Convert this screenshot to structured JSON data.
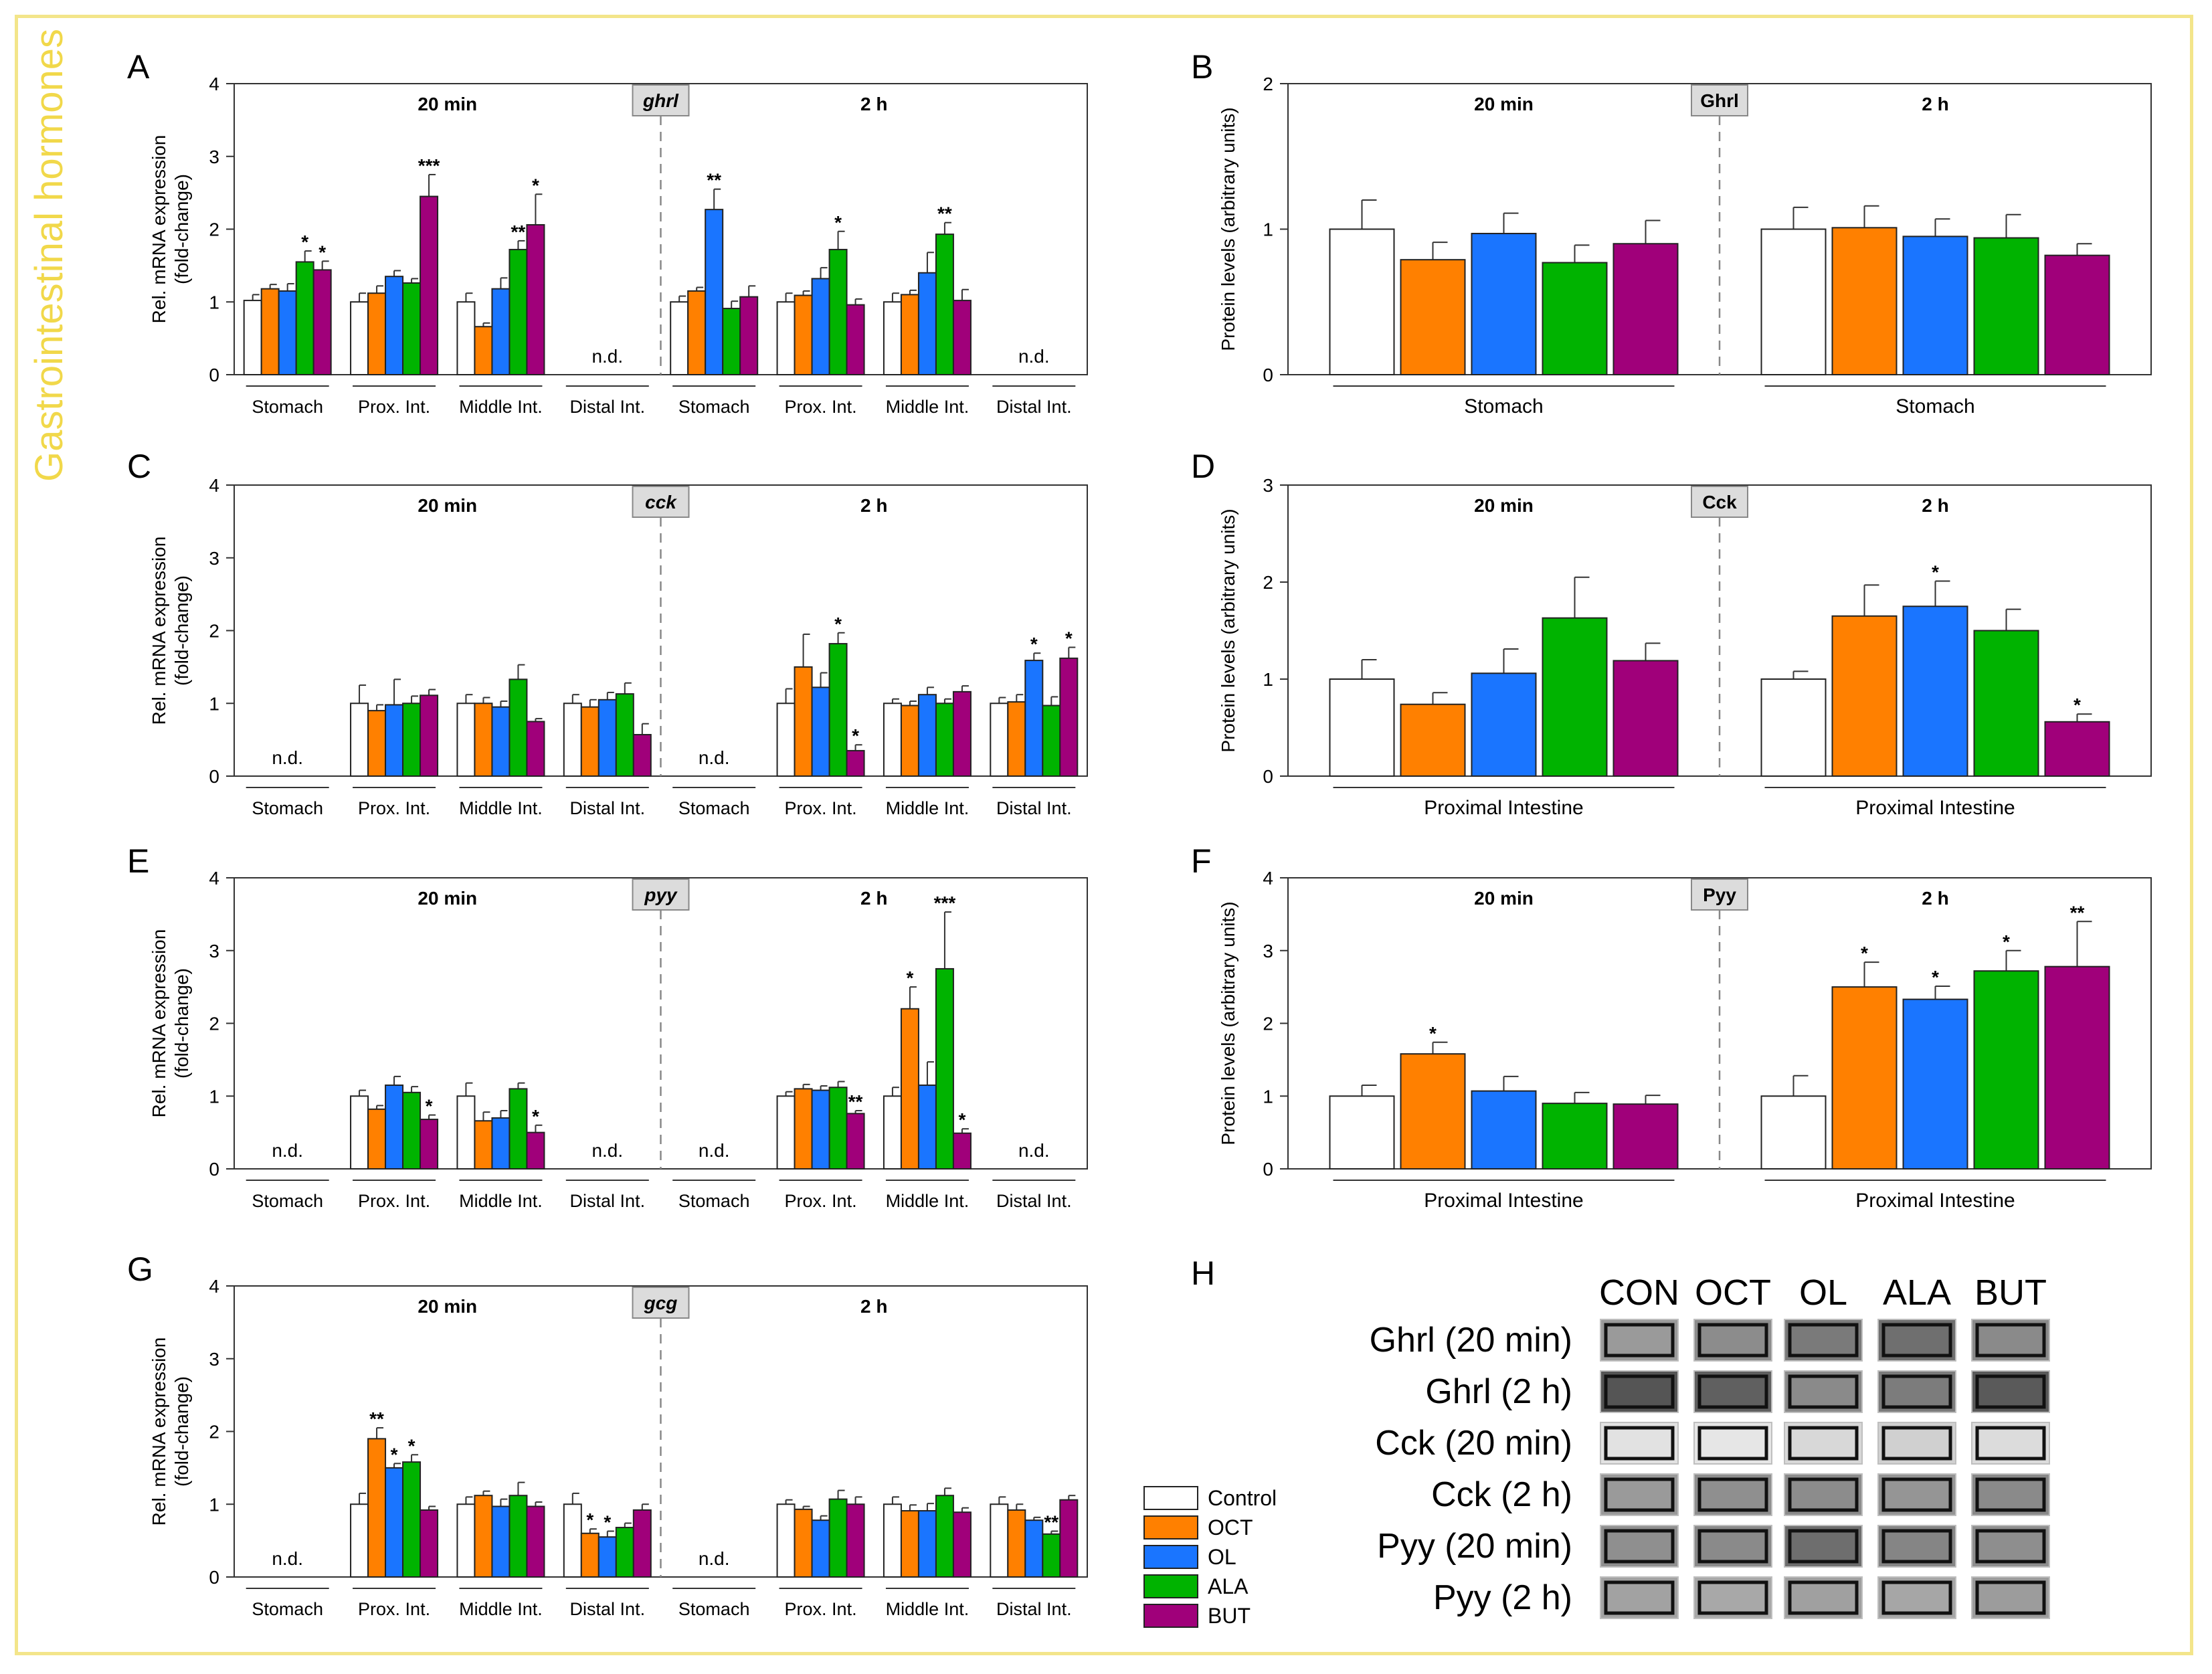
{
  "side_title": "Gastrointestinal hormones",
  "colors": {
    "Control": "#ffffff",
    "OCT": "#ff8000",
    "OL": "#1a75ff",
    "ALA": "#00b300",
    "BUT": "#a0007a"
  },
  "legend": [
    "Control",
    "OCT",
    "OL",
    "ALA",
    "BUT"
  ],
  "chart_data": [
    {
      "id": "A",
      "letter": "A",
      "type": "bar",
      "gene": "ghrl",
      "ylabel": [
        "Rel. mRNA expression",
        "(fold-change)"
      ],
      "ylim": [
        0,
        4
      ],
      "yticks": [
        "0",
        "1",
        "2",
        "3",
        "4"
      ],
      "halves": [
        "20 min",
        "2 h"
      ],
      "groups": [
        {
          "name": "Stomach",
          "half": 0,
          "values": [
            1.02,
            1.18,
            1.15,
            1.55,
            1.44
          ],
          "errors": [
            0.08,
            0.06,
            0.1,
            0.15,
            0.12
          ],
          "sig": [
            "",
            "",
            "",
            "*",
            "*"
          ]
        },
        {
          "name": "Prox. Int.",
          "half": 0,
          "values": [
            1.0,
            1.12,
            1.35,
            1.26,
            2.45
          ],
          "errors": [
            0.12,
            0.1,
            0.08,
            0.06,
            0.3
          ],
          "sig": [
            "",
            "",
            "",
            "",
            "***"
          ]
        },
        {
          "name": "Middle Int.",
          "half": 0,
          "values": [
            1.0,
            0.66,
            1.18,
            1.72,
            2.06
          ],
          "errors": [
            0.12,
            0.05,
            0.15,
            0.12,
            0.42
          ],
          "sig": [
            "",
            "",
            "",
            "**",
            "*"
          ]
        },
        {
          "name": "Distal Int.",
          "half": 0,
          "nd": "n.d."
        },
        {
          "name": "Stomach",
          "half": 1,
          "values": [
            1.0,
            1.15,
            2.27,
            0.91,
            1.07
          ],
          "errors": [
            0.08,
            0.05,
            0.28,
            0.1,
            0.15
          ],
          "sig": [
            "",
            "",
            "**",
            "",
            ""
          ]
        },
        {
          "name": "Prox. Int.",
          "half": 1,
          "values": [
            1.0,
            1.09,
            1.32,
            1.72,
            0.96
          ],
          "errors": [
            0.12,
            0.06,
            0.15,
            0.25,
            0.08
          ],
          "sig": [
            "",
            "",
            "",
            "*",
            ""
          ]
        },
        {
          "name": "Middle Int.",
          "half": 1,
          "values": [
            1.0,
            1.1,
            1.4,
            1.93,
            1.02
          ],
          "errors": [
            0.12,
            0.06,
            0.28,
            0.16,
            0.15
          ],
          "sig": [
            "",
            "",
            "",
            "**",
            ""
          ]
        },
        {
          "name": "Distal Int.",
          "half": 1,
          "nd": "n.d."
        }
      ]
    },
    {
      "id": "B",
      "letter": "B",
      "type": "bar",
      "gene": "Ghrl",
      "ylabel": [
        "Protein levels (arbitrary units)"
      ],
      "ylim": [
        0,
        2
      ],
      "yticks": [
        "0",
        "1",
        "2"
      ],
      "halves": [
        "20 min",
        "2 h"
      ],
      "groups": [
        {
          "name": "Stomach",
          "half": 0,
          "values": [
            1.0,
            0.79,
            0.97,
            0.77,
            0.9
          ],
          "errors": [
            0.2,
            0.12,
            0.14,
            0.12,
            0.16
          ],
          "sig": [
            "",
            "",
            "",
            "",
            ""
          ]
        },
        {
          "name": "Stomach",
          "half": 1,
          "values": [
            1.0,
            1.01,
            0.95,
            0.94,
            0.82
          ],
          "errors": [
            0.15,
            0.15,
            0.12,
            0.16,
            0.08
          ],
          "sig": [
            "",
            "",
            "",
            "",
            ""
          ]
        }
      ]
    },
    {
      "id": "C",
      "letter": "C",
      "type": "bar",
      "gene": "cck",
      "ylabel": [
        "Rel. mRNA expression",
        "(fold-change)"
      ],
      "ylim": [
        0,
        4
      ],
      "yticks": [
        "0",
        "1",
        "2",
        "3",
        "4"
      ],
      "halves": [
        "20 min",
        "2 h"
      ],
      "groups": [
        {
          "name": "Stomach",
          "half": 0,
          "nd": "n.d."
        },
        {
          "name": "Prox. Int.",
          "half": 0,
          "values": [
            1.0,
            0.9,
            0.98,
            1.0,
            1.11
          ],
          "errors": [
            0.25,
            0.08,
            0.35,
            0.1,
            0.08
          ],
          "sig": [
            "",
            "",
            "",
            "",
            ""
          ]
        },
        {
          "name": "Middle Int.",
          "half": 0,
          "values": [
            1.0,
            1.0,
            0.95,
            1.33,
            0.75
          ],
          "errors": [
            0.12,
            0.08,
            0.08,
            0.2,
            0.04
          ],
          "sig": [
            "",
            "",
            "",
            "",
            ""
          ]
        },
        {
          "name": "Distal Int.",
          "half": 0,
          "values": [
            1.0,
            0.95,
            1.05,
            1.13,
            0.57
          ],
          "errors": [
            0.12,
            0.1,
            0.1,
            0.15,
            0.15
          ],
          "sig": [
            "",
            "",
            "",
            "",
            ""
          ]
        },
        {
          "name": "Stomach",
          "half": 1,
          "nd": "n.d."
        },
        {
          "name": "Prox. Int.",
          "half": 1,
          "values": [
            1.0,
            1.5,
            1.22,
            1.82,
            0.35
          ],
          "errors": [
            0.2,
            0.45,
            0.2,
            0.15,
            0.08
          ],
          "sig": [
            "",
            "",
            "",
            "*",
            "*"
          ]
        },
        {
          "name": "Middle Int.",
          "half": 1,
          "values": [
            1.0,
            0.97,
            1.12,
            1.0,
            1.16
          ],
          "errors": [
            0.06,
            0.06,
            0.1,
            0.06,
            0.08
          ],
          "sig": [
            "",
            "",
            "",
            "",
            ""
          ]
        },
        {
          "name": "Distal Int.",
          "half": 1,
          "values": [
            1.0,
            1.02,
            1.59,
            0.97,
            1.62
          ],
          "errors": [
            0.08,
            0.1,
            0.1,
            0.12,
            0.15
          ],
          "sig": [
            "",
            "",
            "*",
            "",
            "*"
          ]
        }
      ]
    },
    {
      "id": "D",
      "letter": "D",
      "type": "bar",
      "gene": "Cck",
      "ylabel": [
        "Protein levels (arbitrary units)"
      ],
      "ylim": [
        0,
        3
      ],
      "yticks": [
        "0",
        "1",
        "2",
        "3"
      ],
      "halves": [
        "20 min",
        "2 h"
      ],
      "groups": [
        {
          "name": "Proximal Intestine",
          "half": 0,
          "values": [
            1.0,
            0.74,
            1.06,
            1.63,
            1.19
          ],
          "errors": [
            0.2,
            0.12,
            0.25,
            0.42,
            0.18
          ],
          "sig": [
            "",
            "",
            "",
            "",
            ""
          ]
        },
        {
          "name": "Proximal Intestine",
          "half": 1,
          "values": [
            1.0,
            1.65,
            1.75,
            1.5,
            0.56
          ],
          "errors": [
            0.08,
            0.32,
            0.26,
            0.22,
            0.08
          ],
          "sig": [
            "",
            "",
            "*",
            "",
            "*"
          ]
        }
      ]
    },
    {
      "id": "E",
      "letter": "E",
      "type": "bar",
      "gene": "pyy",
      "ylabel": [
        "Rel. mRNA expression",
        "(fold-change)"
      ],
      "ylim": [
        0,
        4
      ],
      "yticks": [
        "0",
        "1",
        "2",
        "3",
        "4"
      ],
      "halves": [
        "20 min",
        "2 h"
      ],
      "groups": [
        {
          "name": "Stomach",
          "half": 0,
          "nd": "n.d."
        },
        {
          "name": "Prox. Int.",
          "half": 0,
          "values": [
            1.0,
            0.82,
            1.15,
            1.05,
            0.68
          ],
          "errors": [
            0.08,
            0.05,
            0.12,
            0.08,
            0.06
          ],
          "sig": [
            "",
            "",
            "",
            "",
            "*"
          ]
        },
        {
          "name": "Middle Int.",
          "half": 0,
          "values": [
            1.0,
            0.66,
            0.7,
            1.1,
            0.5
          ],
          "errors": [
            0.18,
            0.12,
            0.1,
            0.08,
            0.1
          ],
          "sig": [
            "",
            "",
            "",
            "",
            "*"
          ]
        },
        {
          "name": "Distal Int.",
          "half": 0,
          "nd": "n.d."
        },
        {
          "name": "Stomach",
          "half": 1,
          "nd": "n.d."
        },
        {
          "name": "Prox. Int.",
          "half": 1,
          "values": [
            1.0,
            1.1,
            1.08,
            1.12,
            0.76
          ],
          "errors": [
            0.06,
            0.06,
            0.06,
            0.08,
            0.04
          ],
          "sig": [
            "",
            "",
            "",
            "",
            "**"
          ]
        },
        {
          "name": "Middle Int.",
          "half": 1,
          "values": [
            1.0,
            2.2,
            1.15,
            2.75,
            0.49
          ],
          "errors": [
            0.12,
            0.3,
            0.32,
            0.78,
            0.06
          ],
          "sig": [
            "",
            "*",
            "",
            "***",
            "*"
          ]
        },
        {
          "name": "Distal Int.",
          "half": 1,
          "nd": "n.d."
        }
      ]
    },
    {
      "id": "F",
      "letter": "F",
      "type": "bar",
      "gene": "Pyy",
      "ylabel": [
        "Protein levels (arbitrary units)"
      ],
      "ylim": [
        0,
        4
      ],
      "yticks": [
        "0",
        "1",
        "2",
        "3",
        "4"
      ],
      "halves": [
        "20 min",
        "2 h"
      ],
      "groups": [
        {
          "name": "Proximal Intestine",
          "half": 0,
          "values": [
            1.0,
            1.58,
            1.07,
            0.9,
            0.89
          ],
          "errors": [
            0.15,
            0.16,
            0.2,
            0.15,
            0.12
          ],
          "sig": [
            "",
            "*",
            "",
            "",
            ""
          ]
        },
        {
          "name": "Proximal Intestine",
          "half": 1,
          "values": [
            1.0,
            2.5,
            2.33,
            2.72,
            2.78
          ],
          "errors": [
            0.28,
            0.34,
            0.18,
            0.28,
            0.62
          ],
          "sig": [
            "",
            "*",
            "*",
            "*",
            "**"
          ]
        }
      ]
    },
    {
      "id": "G",
      "letter": "G",
      "type": "bar",
      "gene": "gcg",
      "ylabel": [
        "Rel. mRNA expression",
        "(fold-change)"
      ],
      "ylim": [
        0,
        4
      ],
      "yticks": [
        "0",
        "1",
        "2",
        "3",
        "4"
      ],
      "halves": [
        "20 min",
        "2 h"
      ],
      "groups": [
        {
          "name": "Stomach",
          "half": 0,
          "nd": "n.d."
        },
        {
          "name": "Prox. Int.",
          "half": 0,
          "values": [
            1.0,
            1.9,
            1.5,
            1.58,
            0.92
          ],
          "errors": [
            0.15,
            0.15,
            0.06,
            0.1,
            0.05
          ],
          "sig": [
            "",
            "**",
            "*",
            "*",
            ""
          ]
        },
        {
          "name": "Middle Int.",
          "half": 0,
          "values": [
            1.0,
            1.12,
            0.97,
            1.12,
            0.97
          ],
          "errors": [
            0.1,
            0.06,
            0.1,
            0.18,
            0.06
          ],
          "sig": [
            "",
            "",
            "",
            "",
            ""
          ]
        },
        {
          "name": "Distal Int.",
          "half": 0,
          "values": [
            1.0,
            0.6,
            0.55,
            0.68,
            0.92
          ],
          "errors": [
            0.15,
            0.06,
            0.08,
            0.06,
            0.08
          ],
          "sig": [
            "",
            "*",
            "*",
            "",
            ""
          ]
        },
        {
          "name": "Stomach",
          "half": 1,
          "nd": "n.d."
        },
        {
          "name": "Prox. Int.",
          "half": 1,
          "values": [
            1.0,
            0.93,
            0.78,
            1.07,
            1.0
          ],
          "errors": [
            0.06,
            0.04,
            0.06,
            0.12,
            0.1
          ],
          "sig": [
            "",
            "",
            "",
            "",
            ""
          ]
        },
        {
          "name": "Middle Int.",
          "half": 1,
          "values": [
            1.0,
            0.91,
            0.91,
            1.12,
            0.89
          ],
          "errors": [
            0.1,
            0.08,
            0.1,
            0.1,
            0.06
          ],
          "sig": [
            "",
            "",
            "",
            "",
            ""
          ]
        },
        {
          "name": "Distal Int.",
          "half": 1,
          "values": [
            1.0,
            0.92,
            0.78,
            0.59,
            1.06
          ],
          "errors": [
            0.1,
            0.08,
            0.04,
            0.04,
            0.06
          ],
          "sig": [
            "",
            "",
            "",
            "**",
            ""
          ]
        }
      ]
    }
  ],
  "blot": {
    "letter": "H",
    "columns": [
      "CON",
      "OCT",
      "OL",
      "ALA",
      "BUT"
    ],
    "rows": [
      "Ghrl (20 min)",
      "Ghrl (2 h)",
      "Cck (20 min)",
      "Cck (2 h)",
      "Pyy (20 min)",
      "Pyy (2 h)"
    ]
  }
}
